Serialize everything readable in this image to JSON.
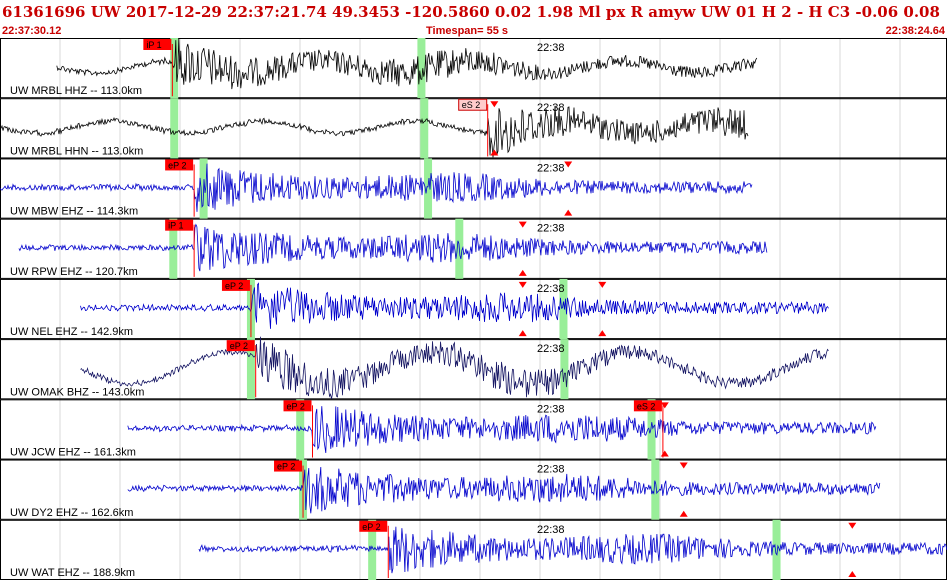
{
  "header": {
    "title": "61361696 UW 2017-12-29 22:37:21.74    49.3453 -120.5860    0.02   1.98 Ml   px   R  amyw      UW 01   H    2   -   H C3    -0.06   0.08"
  },
  "subheader": {
    "start_time": "22:37:30.12",
    "timespan": "Timespan=  55 s",
    "end_time": "22:38:24.64"
  },
  "chart_data": {
    "type": "line",
    "time_tick_label": "22:38",
    "colors": {
      "primary": "#000000",
      "secondary": "#0000cc",
      "tertiary": "#1a1a66",
      "pick": "#ff0000",
      "window": "#99ee99"
    },
    "channels": [
      {
        "label": "UW MRBL HHZ -- 113.0km",
        "color": "primary",
        "trace": [
          0.06,
          0.8
        ],
        "picks": [
          {
            "label": "iP 1",
            "pos": 0.182
          }
        ],
        "green": [
          0.184,
          0.445
        ],
        "markers": []
      },
      {
        "label": "UW MRBL HHN -- 113.0km",
        "color": "primary",
        "trace": [
          0.0,
          0.79
        ],
        "picks": [
          {
            "label": "eS 2",
            "pos": 0.515,
            "style": "light"
          }
        ],
        "green": [
          0.184,
          0.448
        ],
        "markers": [
          0.522
        ]
      },
      {
        "label": "UW MBW EHZ -- 114.3km",
        "color": "secondary",
        "trace": [
          0.0,
          0.795
        ],
        "picks": [
          {
            "label": "eP 2",
            "pos": 0.205
          }
        ],
        "green": [
          0.215,
          0.452
        ],
        "markers": [
          0.6
        ]
      },
      {
        "label": "UW RPW EHZ -- 120.7km",
        "color": "secondary",
        "trace": [
          0.02,
          0.81
        ],
        "picks": [
          {
            "label": "iP 1",
            "pos": 0.205
          }
        ],
        "green": [
          0.183,
          0.485
        ],
        "markers": [
          0.552
        ]
      },
      {
        "label": "UW NEL EHZ -- 142.9km",
        "color": "secondary",
        "trace": [
          0.085,
          0.875
        ],
        "picks": [
          {
            "label": "eP 2",
            "pos": 0.265
          }
        ],
        "green": [
          0.265,
          0.595
        ],
        "markers": [
          0.552,
          0.636
        ]
      },
      {
        "label": "UW OMAK BHZ -- 143.0km",
        "color": "tertiary",
        "trace": [
          0.085,
          0.875
        ],
        "picks": [
          {
            "label": "eP 2",
            "pos": 0.27
          }
        ],
        "green": [
          0.265,
          0.596
        ],
        "markers": []
      },
      {
        "label": "UW JCW EHZ -- 161.3km",
        "color": "secondary",
        "trace": [
          0.135,
          0.925
        ],
        "picks": [
          {
            "label": "eP 2",
            "pos": 0.33
          },
          {
            "label": "eS 2",
            "pos": 0.7
          }
        ],
        "green": [
          0.317,
          0.688
        ],
        "markers": [
          0.702
        ]
      },
      {
        "label": "UW DY2 EHZ -- 162.6km",
        "color": "secondary",
        "trace": [
          0.135,
          0.93
        ],
        "picks": [
          {
            "label": "eP 2",
            "pos": 0.32
          }
        ],
        "green": [
          0.32,
          0.692
        ],
        "markers": [
          0.722
        ]
      },
      {
        "label": "UW WAT EHZ -- 188.9km",
        "color": "secondary",
        "trace": [
          0.21,
          1.0
        ],
        "picks": [
          {
            "label": "eP 2",
            "pos": 0.41
          }
        ],
        "green": [
          0.393,
          0.82
        ],
        "markers": [
          0.9
        ]
      }
    ]
  }
}
